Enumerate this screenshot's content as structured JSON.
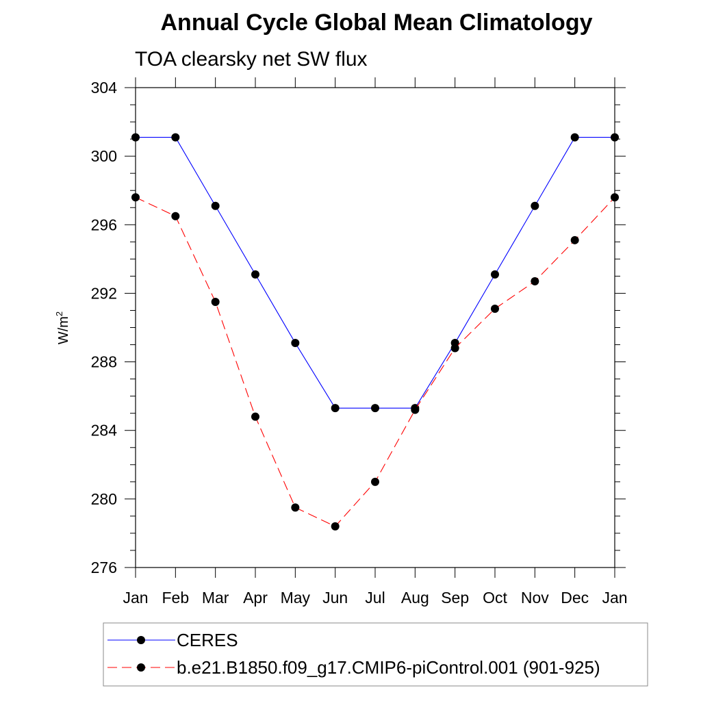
{
  "chart_data": {
    "type": "line",
    "title": "Annual Cycle Global Mean Climatology",
    "subtitle": "TOA clearsky net SW flux",
    "ylabel": "W/m",
    "ylabel_superscript": "2",
    "categories": [
      "Jan",
      "Feb",
      "Mar",
      "Apr",
      "May",
      "Jun",
      "Jul",
      "Aug",
      "Sep",
      "Oct",
      "Nov",
      "Dec",
      "Jan"
    ],
    "ylim": [
      276,
      304
    ],
    "yticks": [
      276,
      280,
      284,
      288,
      292,
      296,
      300,
      304
    ],
    "grid": false,
    "legend_position": "bottom",
    "series": [
      {
        "name": "CERES",
        "color": "#0000ff",
        "dash": "solid",
        "marker": "filled-circle",
        "values": [
          301.1,
          301.1,
          297.1,
          293.1,
          289.1,
          285.3,
          285.3,
          285.3,
          289.1,
          293.1,
          297.1,
          301.1,
          301.1
        ]
      },
      {
        "name": "b.e21.B1850.f09_g17.CMIP6-piControl.001 (901-925)",
        "color": "#ff0000",
        "dash": "dashed",
        "marker": "filled-circle",
        "values": [
          297.6,
          296.5,
          291.5,
          284.8,
          279.5,
          278.4,
          281.0,
          285.2,
          288.8,
          291.1,
          292.7,
          295.1,
          297.6
        ]
      }
    ]
  }
}
